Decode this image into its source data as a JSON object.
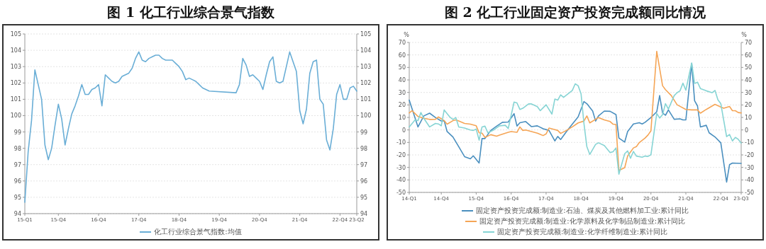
{
  "chart_data": [
    {
      "type": "line",
      "title": "图 1  化工行业综合景气指数",
      "categories": [
        "15-Q1",
        null,
        null,
        null,
        null,
        null,
        null,
        null,
        null,
        null,
        "15-Q4",
        null,
        null,
        null,
        null,
        null,
        null,
        null,
        null,
        null,
        null,
        null,
        "16-Q4",
        null,
        null,
        null,
        null,
        null,
        null,
        null,
        null,
        null,
        null,
        null,
        "17-Q4",
        null,
        null,
        null,
        null,
        null,
        null,
        null,
        null,
        null,
        null,
        null,
        "18-Q4",
        null,
        null,
        null,
        null,
        null,
        null,
        null,
        null,
        null,
        null,
        null,
        "19-Q4",
        null,
        null,
        null,
        null,
        null,
        null,
        null,
        null,
        null,
        null,
        null,
        "20-Q4",
        null,
        null,
        null,
        null,
        null,
        null,
        null,
        null,
        null,
        null,
        null,
        "21-Q4",
        null,
        null,
        null,
        null,
        null,
        null,
        null,
        null,
        null,
        null,
        null,
        "22-Q4",
        null,
        null,
        null,
        null,
        "23-Q2"
      ],
      "ylim": [
        94,
        105
      ],
      "yticks": [
        94,
        95,
        96,
        97,
        98,
        99,
        100,
        101,
        102,
        103,
        104,
        105
      ],
      "y2lim": [
        94,
        105
      ],
      "y2ticks": [
        94,
        95,
        96,
        97,
        98,
        99,
        100,
        101,
        102,
        103,
        104,
        105
      ],
      "grid": "y",
      "legend": "bottom",
      "series": [
        {
          "name": "化工行业综合景气指数:均值",
          "color": "#6aaed6",
          "values": [
            94.7,
            97.8,
            99.7,
            102.8,
            101.9,
            101.0,
            98.2,
            97.3,
            98.0,
            99.4,
            100.7,
            99.8,
            98.2,
            99.2,
            100.1,
            100.6,
            101.2,
            101.9,
            101.3,
            101.3,
            101.6,
            101.7,
            101.9,
            100.6,
            102.5,
            102.3,
            102.1,
            102.0,
            102.1,
            102.4,
            102.5,
            102.6,
            102.9,
            103.5,
            103.9,
            103.4,
            103.3,
            103.5,
            103.6,
            103.7,
            103.7,
            103.5,
            103.4,
            103.4,
            103.4,
            103.2,
            103.0,
            102.7,
            102.2,
            102.3,
            102.2,
            102.1,
            101.9,
            101.7,
            101.6,
            101.5,
            null,
            null,
            null,
            null,
            null,
            null,
            null,
            101.4,
            101.9,
            103.5,
            103.1,
            102.4,
            102.5,
            102.3,
            102.1,
            101.6,
            102.5,
            103.3,
            103.6,
            102.1,
            102.0,
            102.1,
            103.0,
            103.9,
            null,
            102.7,
            100.3,
            99.5,
            100.4,
            102.6,
            103.3,
            103.4,
            101.0,
            100.7,
            98.5,
            97.9,
            99.2,
            101.3,
            101.9,
            101.0,
            101.0,
            101.7,
            101.8,
            101.5
          ]
        }
      ]
    },
    {
      "type": "line",
      "title": "图 2  化工行业固定资产投资完成额同比情况",
      "ylabel": "%",
      "y2label": "%",
      "categories": [
        "14-Q1",
        null,
        null,
        null,
        null,
        null,
        null,
        null,
        null,
        null,
        null,
        "14-Q4",
        null,
        null,
        null,
        null,
        null,
        null,
        null,
        null,
        null,
        null,
        null,
        "15-Q4",
        null,
        null,
        null,
        null,
        null,
        null,
        null,
        null,
        null,
        null,
        null,
        "16-Q4",
        null,
        null,
        null,
        null,
        null,
        null,
        null,
        null,
        null,
        null,
        null,
        "17-Q4",
        null,
        null,
        null,
        null,
        null,
        null,
        null,
        null,
        null,
        null,
        null,
        "18-Q4",
        null,
        null,
        null,
        null,
        null,
        null,
        null,
        null,
        null,
        null,
        null,
        "19-Q4",
        null,
        null,
        null,
        null,
        null,
        null,
        null,
        null,
        null,
        null,
        null,
        "20-Q4",
        null,
        null,
        null,
        null,
        null,
        null,
        null,
        null,
        null,
        null,
        null,
        "21-Q4",
        null,
        null,
        null,
        null,
        null,
        null,
        null,
        null,
        null,
        null,
        null,
        "22-Q4",
        null,
        null,
        null,
        null,
        null,
        null,
        "23-Q3"
      ],
      "ylim": [
        -50,
        70
      ],
      "yticks": [
        -50,
        -40,
        -30,
        -20,
        -10,
        0,
        10,
        20,
        30,
        40,
        50,
        60,
        70
      ],
      "y2lim": [
        -50,
        70
      ],
      "y2ticks": [
        -50,
        -40,
        -30,
        -20,
        -10,
        0,
        10,
        20,
        30,
        40,
        50,
        60,
        70
      ],
      "grid": "y",
      "legend": "bottom",
      "series": [
        {
          "name": "固定资产投资完成额:制造业:石油、煤炭及其他燃料加工业:累计同比",
          "color": "#4a8fbf",
          "values": [
            23.8,
            null,
            null,
            2.4,
            null,
            11.2,
            null,
            13.4,
            null,
            9.9,
            null,
            7.2,
            7.4,
            -1.3,
            null,
            -5.6,
            null,
            -13.4,
            null,
            -21.4,
            null,
            -23.1,
            -20.7,
            null,
            -26.5,
            -6.9,
            -6.9,
            null,
            -0.4,
            null,
            3.0,
            null,
            6.1,
            null,
            6.3,
            null,
            13.0,
            3.1,
            5.8,
            null,
            6.7,
            null,
            2.6,
            null,
            3.3,
            null,
            0.9,
            null,
            -0.4,
            null,
            -8.8,
            -5.2,
            -7.7,
            null,
            -1.3,
            null,
            4.6,
            null,
            10.4,
            null,
            22.7,
            21.0,
            null,
            15.1,
            7.1,
            11.2,
            null,
            15.1,
            null,
            14.9,
            null,
            12.3,
            -6.5,
            null,
            -9.7,
            -1.3,
            null,
            4.8,
            null,
            5.8,
            4.8,
            6.1,
            null,
            9.9,
            null,
            14.5,
            27.5,
            13.6,
            11.7,
            16.0,
            null,
            8.5,
            null,
            8.9,
            8.0,
            8.0,
            null,
            53.2,
            23.4,
            19.2,
            2.4,
            null,
            3.7,
            -2.3,
            null,
            -5.6,
            null,
            -10.3,
            null,
            -41.7,
            -27.8,
            -26.5,
            null,
            null,
            -26.8
          ]
        },
        {
          "name": "固定资产投资完成额:制造业:化学原料及化学制品制造业:累计同比",
          "color": "#f5a556",
          "values": [
            13.6,
            15.4,
            null,
            10.8,
            null,
            9.3,
            null,
            8.4,
            null,
            8.5,
            10.4,
            null,
            7.4,
            4.6,
            null,
            7.4,
            8.0,
            7.1,
            null,
            5.2,
            null,
            4.6,
            null,
            3.3,
            -2.3,
            -2.6,
            -6.0,
            null,
            -3.8,
            null,
            -5.0,
            -4.1,
            null,
            null,
            -1.9,
            -1.3,
            null,
            -1.9,
            2.4,
            -0.4,
            0,
            null,
            -1.3,
            null,
            -2.6,
            null,
            -4.5,
            -3.2,
            1.5,
            null,
            0.2,
            -0.4,
            -2.8,
            null,
            -0.4,
            null,
            2.4,
            null,
            5.6,
            null,
            7.1,
            11.2,
            5.6,
            null,
            null,
            9.9,
            null,
            8.0,
            null,
            6.7,
            4.6,
            4.3,
            -32.4,
            null,
            -30.2,
            -20.9,
            null,
            -14.4,
            -13.4,
            -10.1,
            null,
            -6.5,
            -4.1,
            -0.8,
            null,
            62.9,
            null,
            35.4,
            32.2,
            null,
            27.5,
            null,
            20.1,
            null,
            null,
            16.4,
            null,
            16.0,
            null,
            16.0,
            13.4,
            null,
            16.4,
            null,
            null,
            20.5,
            null,
            null,
            17.3,
            null,
            18.8,
            15.4,
            15.4,
            13.9,
            13.6
          ]
        },
        {
          "name": "固定资产投资完成额:制造业:化学纤维制造业:累计同比",
          "color": "#86d4d4",
          "values": [
            2.4,
            null,
            8.0,
            7.4,
            13.9,
            9.3,
            null,
            2.4,
            null,
            5.2,
            4.8,
            3.3,
            16.0,
            null,
            10.2,
            8.4,
            9.9,
            2.4,
            null,
            1.5,
            null,
            0,
            -0.4,
            0.7,
            -8.2,
            2.4,
            3.0,
            -2.3,
            null,
            0,
            null,
            3.3,
            null,
            3.7,
            1.1,
            null,
            22.3,
            21.6,
            16.4,
            17.3,
            null,
            20.8,
            20.8,
            null,
            18.6,
            15.4,
            null,
            20.1,
            null,
            12.7,
            24.7,
            23.8,
            28.1,
            26.1,
            null,
            null,
            31.6,
            36.9,
            35.4,
            29.0,
            5.2,
            -13.4,
            -19.6,
            null,
            -11.6,
            -10.3,
            null,
            -12.5,
            null,
            -18.1,
            -17.5,
            -14.4,
            -35.4,
            null,
            -19.0,
            -16.8,
            -22.7,
            -17.2,
            -20.9,
            null,
            -21.8,
            -20.9,
            -21.2,
            -19.9,
            null,
            13.2,
            9.5,
            12.3,
            21.0,
            16.7,
            null,
            27.5,
            29.8,
            31.3,
            37.4,
            31.8,
            null,
            53.6,
            37.2,
            38.2,
            33.1,
            null,
            31.3,
            null,
            29.8,
            31.6,
            24.2,
            21.0,
            null,
            -5.4,
            -3.6,
            -8.8,
            -6.0,
            -7.5,
            -10.6
          ]
        }
      ]
    }
  ]
}
